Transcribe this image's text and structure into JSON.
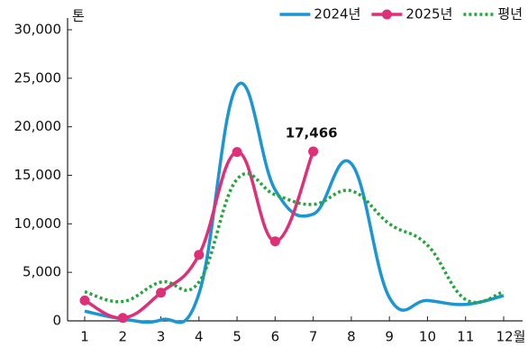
{
  "chart_data": {
    "type": "line",
    "y_label": "톤",
    "categories": [
      "1",
      "2",
      "3",
      "4",
      "5",
      "6",
      "7",
      "8",
      "9",
      "10",
      "11",
      "12월"
    ],
    "series": [
      {
        "name": "2024년",
        "color": "#1b95d3",
        "style": "solid",
        "marker": false,
        "values": [
          1000,
          200,
          100,
          2800,
          24200,
          13500,
          11000,
          16200,
          2400,
          2100,
          1700,
          2600
        ]
      },
      {
        "name": "2025년",
        "color": "#df2f78",
        "style": "solid",
        "marker": true,
        "values": [
          2100,
          300,
          2900,
          6800,
          17400,
          8200,
          17466,
          null,
          null,
          null,
          null,
          null
        ],
        "value_labels": [
          null,
          null,
          null,
          null,
          null,
          null,
          "17,466",
          null,
          null,
          null,
          null,
          null
        ]
      },
      {
        "name": "평년",
        "color": "#23a63b",
        "style": "dotted",
        "marker": false,
        "values": [
          3000,
          2000,
          4000,
          4000,
          14600,
          13000,
          12000,
          13400,
          10000,
          7800,
          2200,
          3000
        ]
      }
    ],
    "ylim": [
      0,
      30000
    ],
    "yticks": [
      0,
      {
        "value": 5000,
        "label": "5,000"
      },
      {
        "value": 10000,
        "label": "10,000"
      },
      {
        "value": 15000,
        "label": "15,000"
      },
      {
        "value": 20000,
        "label": "20,000"
      },
      {
        "value": 25000,
        "label": "25,000"
      },
      {
        "value": 30000,
        "label": "30,000"
      }
    ],
    "legend": "top-right"
  }
}
